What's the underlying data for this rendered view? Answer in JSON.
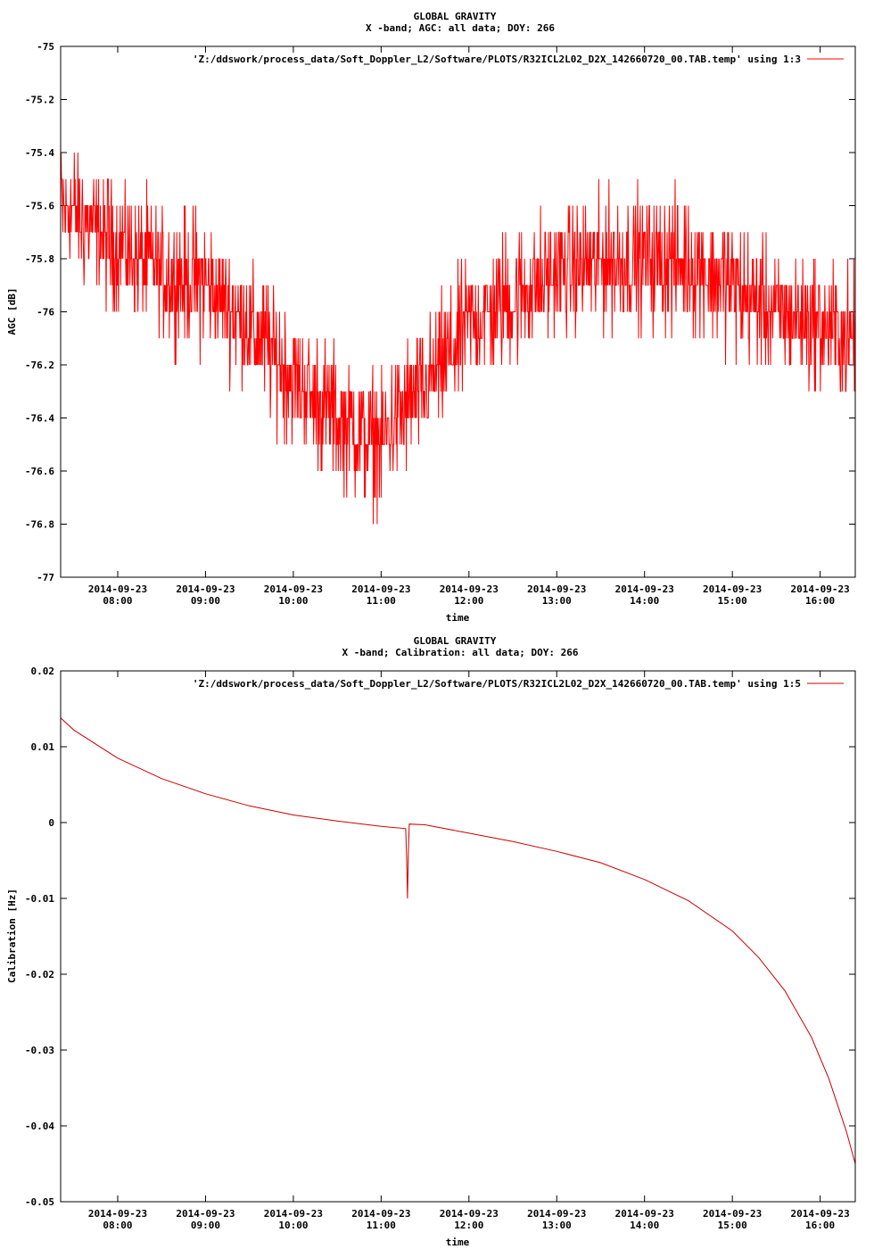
{
  "chart_data": [
    {
      "type": "line",
      "title": "GLOBAL GRAVITY",
      "subtitle": "X -band; AGC: all data; DOY: 266",
      "xlabel": "time",
      "ylabel": "AGC [dB]",
      "ylim": [
        -77,
        -75
      ],
      "yticks": [
        -75,
        -75.2,
        -75.4,
        -75.6,
        -75.8,
        -76,
        -76.2,
        -76.4,
        -76.6,
        -76.8,
        -77
      ],
      "ytick_labels": [
        "-75",
        "-75.2",
        "-75.4",
        "-75.6",
        "-75.8",
        "-76",
        "-76.2",
        "-76.4",
        "-76.6",
        "-76.8",
        "-77"
      ],
      "xlim_hours": [
        7.35,
        16.4
      ],
      "xticks_hours": [
        8,
        9,
        10,
        11,
        12,
        13,
        14,
        15,
        16
      ],
      "xtick_dates": [
        "2014-09-23",
        "2014-09-23",
        "2014-09-23",
        "2014-09-23",
        "2014-09-23",
        "2014-09-23",
        "2014-09-23",
        "2014-09-23",
        "2014-09-23"
      ],
      "xtick_times": [
        "08:00",
        "09:00",
        "10:00",
        "11:00",
        "12:00",
        "13:00",
        "14:00",
        "15:00",
        "16:00"
      ],
      "grid": false,
      "legend_position": "top-right",
      "series": [
        {
          "name": "'Z:/ddswork/process_data/Soft_Doppler_L2/Software/PLOTS/R32ICL2L02_D2X_142660720_00.TAB.temp' using 1:3",
          "color": "#ff0000",
          "trend_x_hours": [
            7.35,
            7.6,
            8.0,
            8.5,
            9.0,
            9.5,
            10.0,
            10.5,
            11.0,
            11.3,
            11.6,
            12.0,
            12.5,
            13.0,
            13.5,
            14.0,
            14.5,
            15.0,
            15.5,
            16.0,
            16.4
          ],
          "trend_y": [
            -75.6,
            -75.65,
            -75.75,
            -75.85,
            -75.9,
            -76.05,
            -76.25,
            -76.4,
            -76.5,
            -76.35,
            -76.25,
            -76.05,
            -75.95,
            -75.85,
            -75.82,
            -75.8,
            -75.82,
            -75.9,
            -76.0,
            -76.05,
            -76.1
          ],
          "noise_amplitude_db": 0.35
        }
      ]
    },
    {
      "type": "line",
      "title": "GLOBAL GRAVITY",
      "subtitle": "X -band; Calibration: all data; DOY: 266",
      "xlabel": "time",
      "ylabel": "Calibration [Hz]",
      "ylim": [
        -0.05,
        0.02
      ],
      "yticks": [
        0.02,
        0.01,
        0,
        -0.01,
        -0.02,
        -0.03,
        -0.04,
        -0.05
      ],
      "ytick_labels": [
        "0.02",
        "0.01",
        "0",
        "-0.01",
        "-0.02",
        "-0.03",
        "-0.04",
        "-0.05"
      ],
      "xlim_hours": [
        7.35,
        16.4
      ],
      "xticks_hours": [
        8,
        9,
        10,
        11,
        12,
        13,
        14,
        15,
        16
      ],
      "xtick_dates": [
        "2014-09-23",
        "2014-09-23",
        "2014-09-23",
        "2014-09-23",
        "2014-09-23",
        "2014-09-23",
        "2014-09-23",
        "2014-09-23",
        "2014-09-23"
      ],
      "xtick_times": [
        "08:00",
        "09:00",
        "10:00",
        "11:00",
        "12:00",
        "13:00",
        "14:00",
        "15:00",
        "16:00"
      ],
      "grid": false,
      "legend_position": "top-right",
      "series": [
        {
          "name": "'Z:/ddswork/process_data/Soft_Doppler_L2/Software/PLOTS/R32ICL2L02_D2X_142660720_00.TAB.temp' using 1:5",
          "color": "#cc0000",
          "x_hours": [
            7.35,
            7.5,
            8.0,
            8.5,
            9.0,
            9.5,
            10.0,
            10.5,
            11.0,
            11.28,
            11.29,
            11.3,
            11.31,
            11.32,
            11.5,
            12.0,
            12.5,
            13.0,
            13.5,
            14.0,
            14.5,
            15.0,
            15.3,
            15.6,
            15.9,
            16.1,
            16.3,
            16.4
          ],
          "y": [
            0.0138,
            0.0122,
            0.0085,
            0.0058,
            0.0038,
            0.0022,
            0.001,
            0.0002,
            -0.0005,
            -0.0008,
            -0.0045,
            -0.01,
            -0.004,
            -0.0002,
            -0.0003,
            -0.0014,
            -0.0025,
            -0.0038,
            -0.0053,
            -0.0075,
            -0.0103,
            -0.0143,
            -0.0178,
            -0.0222,
            -0.0283,
            -0.0338,
            -0.0408,
            -0.045
          ]
        }
      ]
    }
  ]
}
